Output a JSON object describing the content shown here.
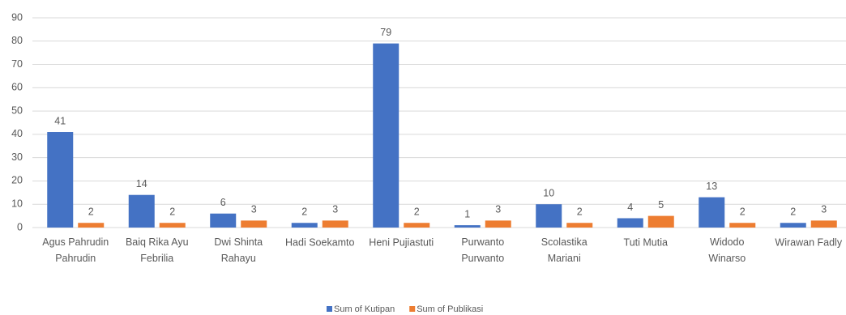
{
  "chart_data": {
    "type": "bar",
    "categories": [
      "Agus Pahrudin Pahrudin",
      "Baiq Rika Ayu Febrilia",
      "Dwi Shinta Rahayu",
      "Hadi Soekamto",
      "Heni Pujiastuti",
      "Purwanto Purwanto",
      "Scolastika Mariani",
      "Tuti Mutia",
      "Widodo Winarso",
      "Wirawan Fadly"
    ],
    "series": [
      {
        "name": "Sum of Kutipan",
        "color": "#4472c4",
        "values": [
          41,
          14,
          6,
          2,
          79,
          1,
          10,
          4,
          13,
          2
        ]
      },
      {
        "name": "Sum of Publikasi",
        "color": "#ed7d31",
        "values": [
          2,
          2,
          3,
          3,
          2,
          3,
          2,
          5,
          2,
          3
        ]
      }
    ],
    "ylim": [
      0,
      90
    ],
    "yticks": [
      0,
      10,
      20,
      30,
      40,
      50,
      60,
      70,
      80,
      90
    ],
    "grid": true,
    "legend": "bottom"
  }
}
